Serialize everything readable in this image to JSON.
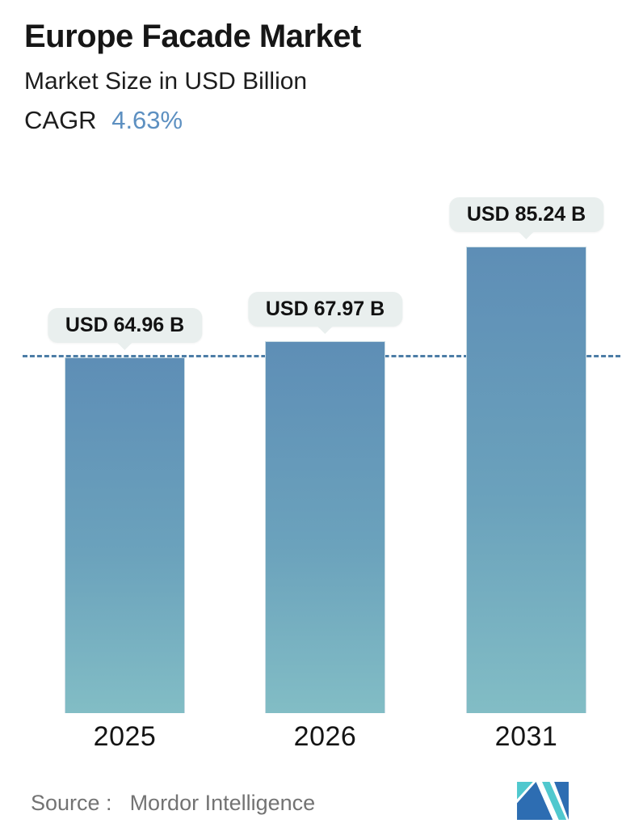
{
  "header": {
    "title": "Europe Facade Market",
    "subtitle": "Market Size in USD Billion",
    "cagr_label": "CAGR",
    "cagr_value": "4.63%"
  },
  "chart_data": {
    "type": "bar",
    "title": "Europe Facade Market",
    "subtitle": "Market Size in USD Billion",
    "unit": "USD Billion",
    "cagr_percent": 4.63,
    "categories": [
      "2025",
      "2026",
      "2031"
    ],
    "values": [
      64.96,
      67.97,
      85.24
    ],
    "data_labels": [
      "USD 64.96 B",
      "USD 67.97 B",
      "USD 85.24 B"
    ],
    "ylim": [
      0,
      90
    ],
    "grid": false,
    "legend": "none",
    "reference_line": {
      "value": 64.96,
      "style": "dashed",
      "color": "#4c7da6"
    },
    "bar_gradient_top": "#5e8eb6",
    "bar_gradient_bottom": "#82bdc5"
  },
  "footer": {
    "source_label": "Source :",
    "source_value": "Mordor Intelligence"
  },
  "colors": {
    "accent_blue": "#5d90c1",
    "dashed_line": "#4c7da6",
    "callout_bg": "#e9efee",
    "bar_top": "#5e8eb6",
    "bar_bottom": "#82bdc5",
    "source_text": "#737373",
    "logo_teal": "#50c8ce",
    "logo_blue": "#2d6db2"
  }
}
